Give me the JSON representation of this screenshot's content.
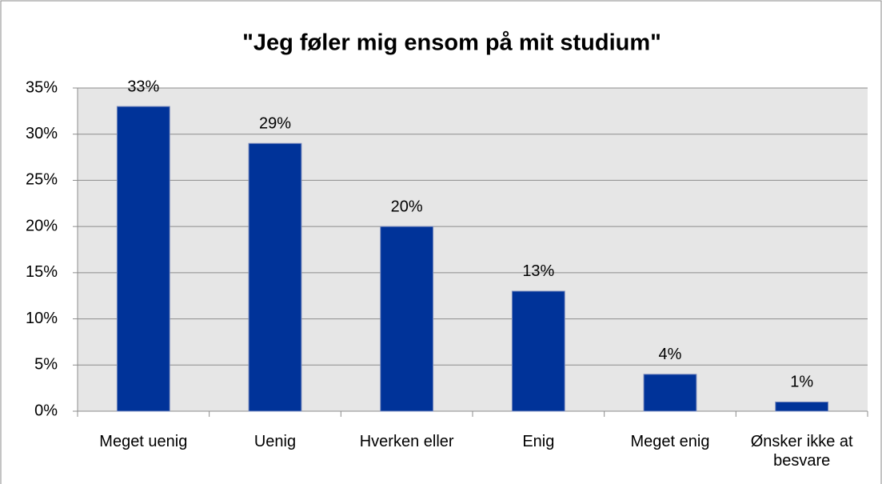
{
  "chart_data": {
    "type": "bar",
    "title": "\"Jeg føler mig ensom på mit studium\"",
    "categories": [
      "Meget uenig",
      "Uenig",
      "Hverken eller",
      "Enig",
      "Meget enig",
      "Ønsker ikke at besvare"
    ],
    "values": [
      33,
      29,
      20,
      13,
      4,
      1
    ],
    "value_labels": [
      "33%",
      "29%",
      "20%",
      "13%",
      "4%",
      "1%"
    ],
    "color": "#003399",
    "ylim": [
      0,
      35
    ],
    "yticks": [
      {
        "value": 0,
        "label": "0%"
      },
      {
        "value": 5,
        "label": "5%"
      },
      {
        "value": 10,
        "label": "10%"
      },
      {
        "value": 15,
        "label": "15%"
      },
      {
        "value": 20,
        "label": "20%"
      },
      {
        "value": 25,
        "label": "25%"
      },
      {
        "value": 30,
        "label": "30%"
      },
      {
        "value": 35,
        "label": "35%"
      }
    ],
    "grid": true
  }
}
